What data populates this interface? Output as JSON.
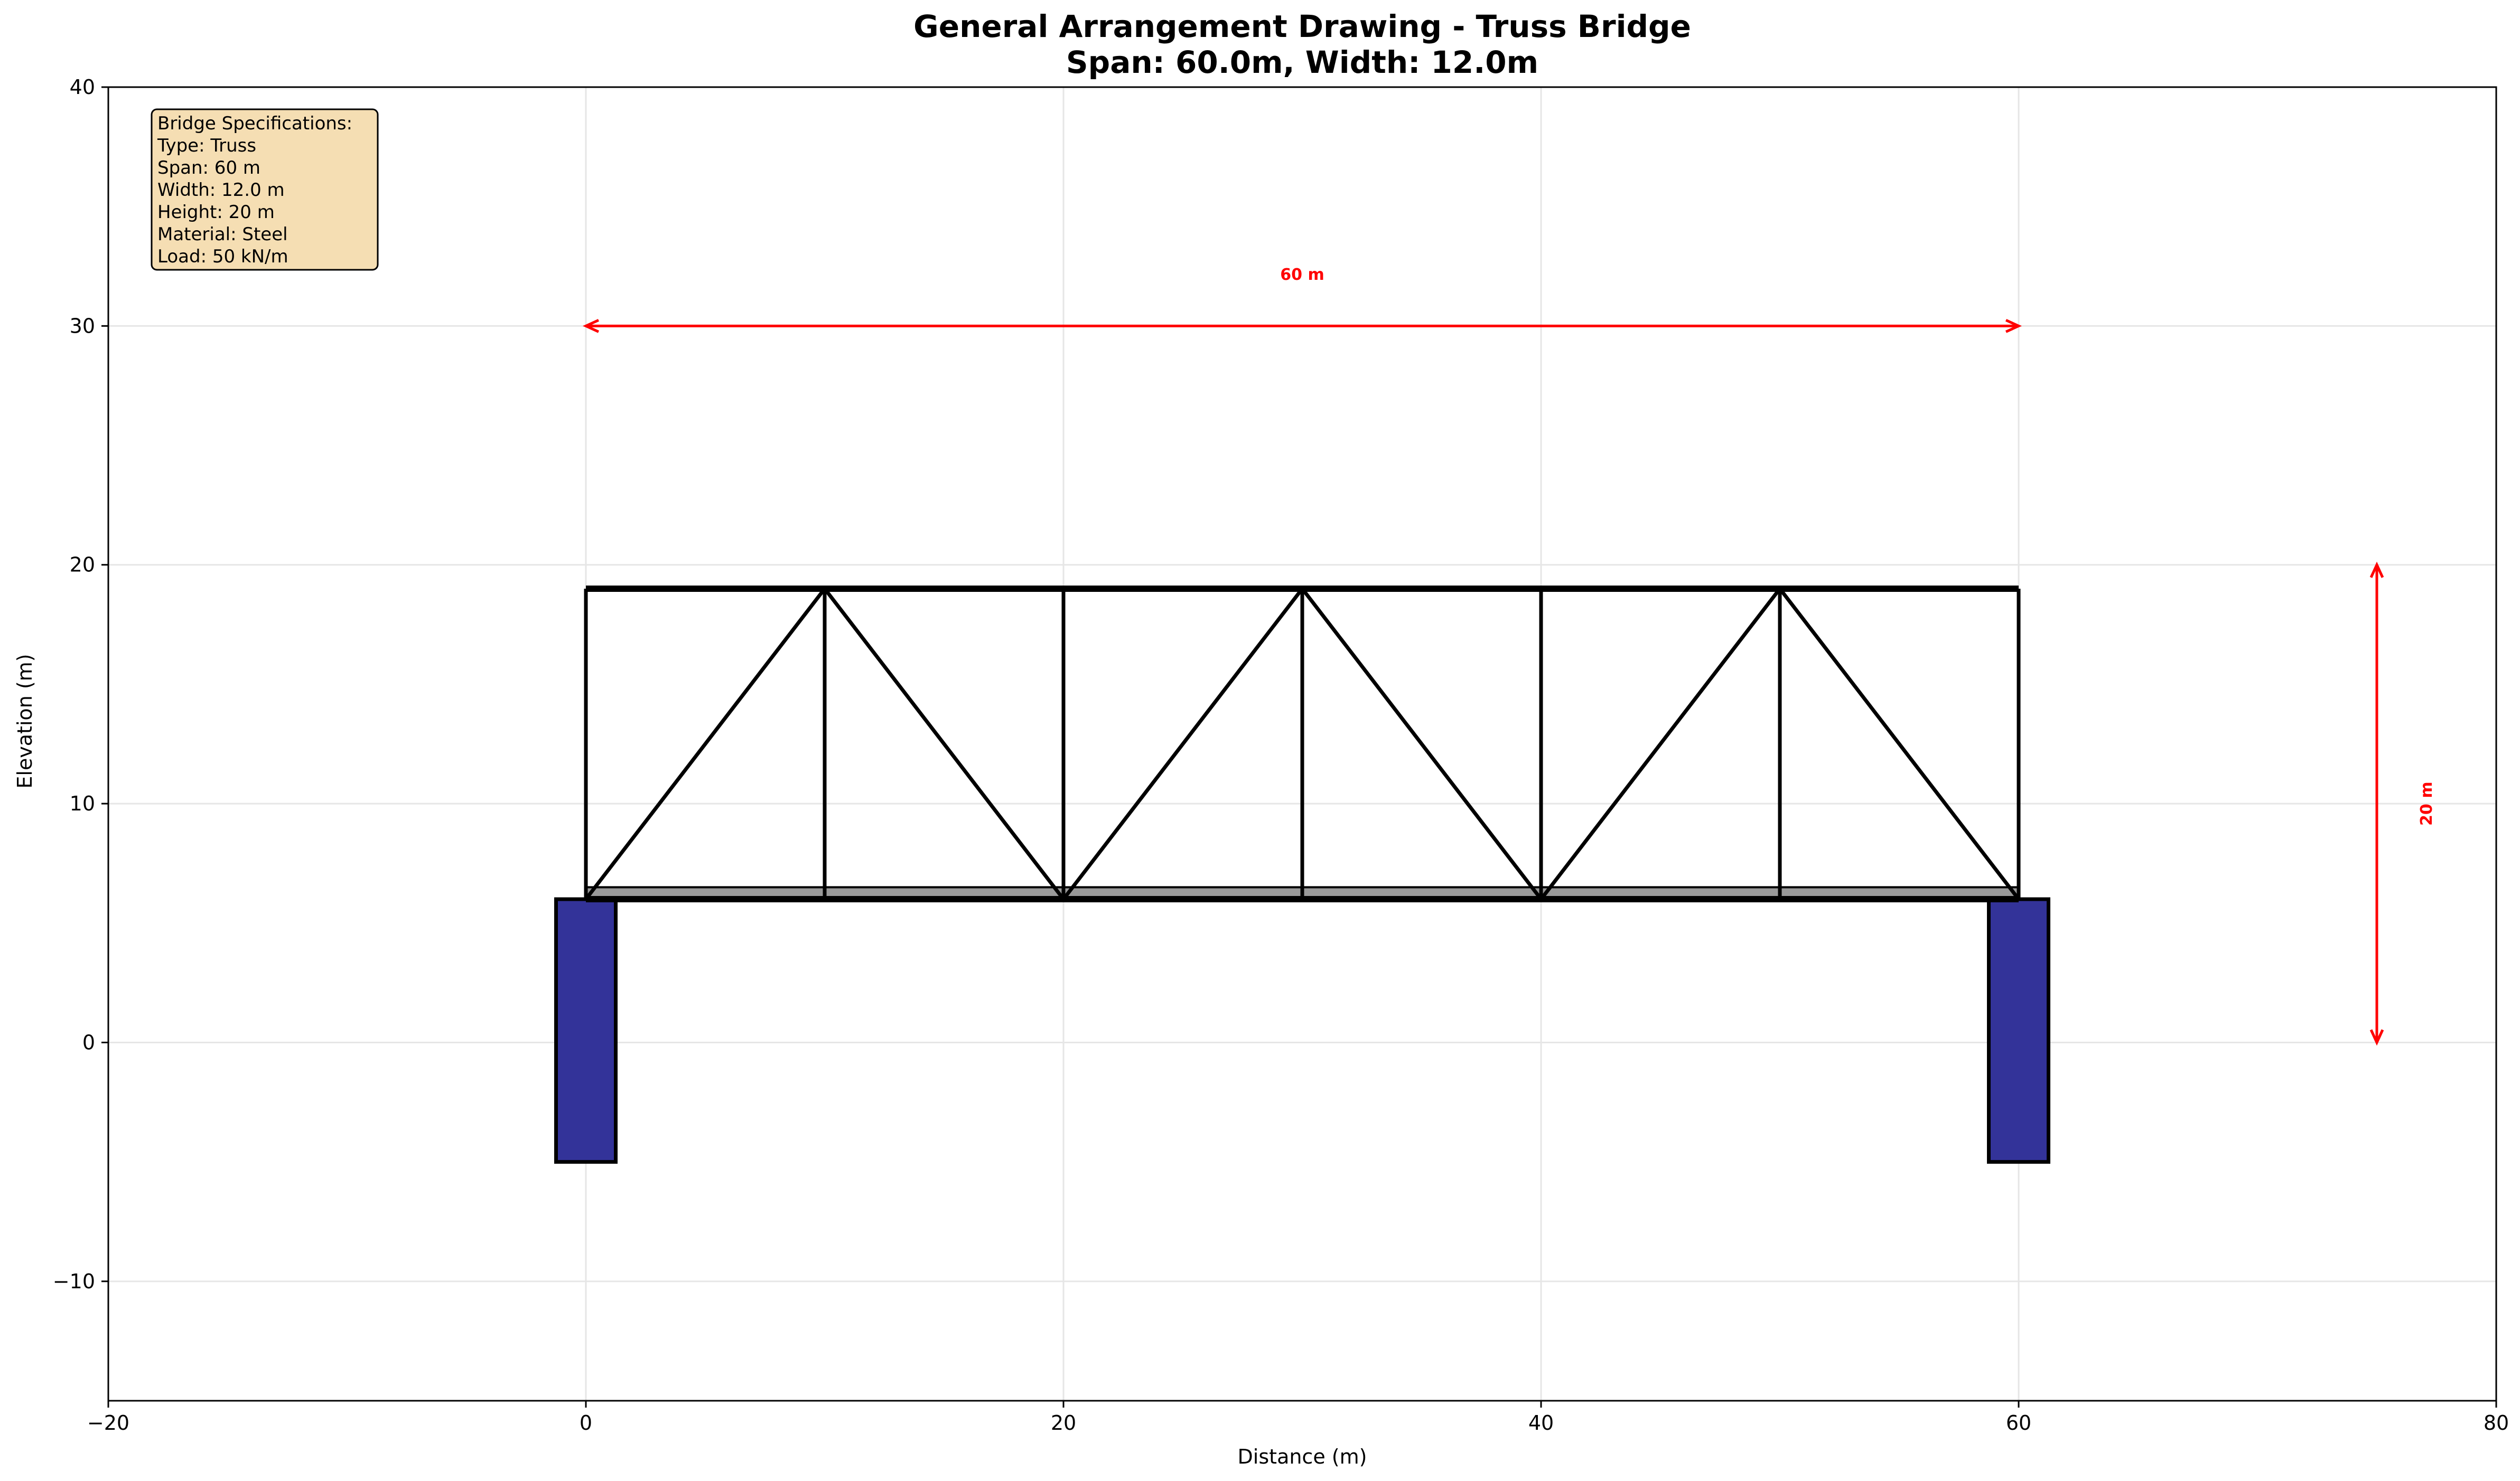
{
  "title": {
    "line1": "General Arrangement Drawing - Truss Bridge",
    "line2": "Span: 60.0m, Width: 12.0m"
  },
  "axes": {
    "xlabel": "Distance (m)",
    "ylabel": "Elevation (m)",
    "xlim": [
      -20,
      80
    ],
    "ylim": [
      -15,
      40
    ],
    "xticks": [
      -20,
      0,
      20,
      40,
      60,
      80
    ],
    "yticks": [
      -10,
      0,
      10,
      20,
      30,
      40
    ],
    "xtick_labels": [
      "−20",
      "0",
      "20",
      "40",
      "60",
      "80"
    ],
    "ytick_labels": [
      "−10",
      "0",
      "10",
      "20",
      "30",
      "40"
    ],
    "grid": true
  },
  "specs": {
    "lines": [
      "Bridge Specifications:",
      "Type: Truss",
      "Span: 60 m",
      "Width: 12.0 m",
      "Height: 20 m",
      "Material: Steel",
      "Load: 50 kN/m"
    ],
    "background": "#f5deb3"
  },
  "dimensions": {
    "span_label": "60 m",
    "span_from": 0,
    "span_to": 60,
    "span_y": 30,
    "height_label": "20 m",
    "height_x": 75,
    "height_from": 0,
    "height_to": 20,
    "color": "#ff0000"
  },
  "structure": {
    "deck_elevation": 6,
    "deck_thickness": 0.5,
    "truss_top": 19,
    "panel_nodes": [
      0,
      10,
      20,
      30,
      40,
      50,
      60
    ],
    "diagonals": [
      [
        0,
        6,
        10,
        19
      ],
      [
        10,
        19,
        20,
        6
      ],
      [
        20,
        6,
        30,
        19
      ],
      [
        30,
        19,
        40,
        6
      ],
      [
        40,
        6,
        50,
        19
      ],
      [
        50,
        19,
        60,
        6
      ]
    ],
    "abutments": [
      {
        "x_from": -1.25,
        "x_to": 1.25,
        "y_from": -5,
        "y_to": 6
      },
      {
        "x_from": 58.75,
        "x_to": 61.25,
        "y_from": -5,
        "y_to": 6
      }
    ],
    "abutment_color": "#333399",
    "deck_color": "#999999"
  }
}
